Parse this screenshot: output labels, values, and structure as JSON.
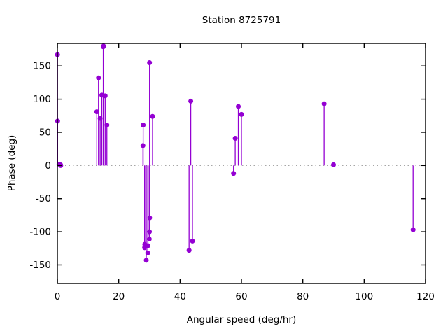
{
  "page": {
    "background": "#ffffff"
  },
  "chart_data": {
    "type": "scatter",
    "style": "impulses+points",
    "title": "Station 8725791",
    "xlabel": "Angular speed (deg/hr)",
    "ylabel": "Phase (deg)",
    "xlim": [
      0,
      120
    ],
    "ylim": [
      -178,
      184
    ],
    "xticks": [
      0,
      20,
      40,
      60,
      80,
      100,
      120
    ],
    "yticks": [
      -150,
      -100,
      -50,
      0,
      50,
      100,
      150
    ],
    "grid": false,
    "legend_position": "none",
    "zero_line": {
      "y": 0,
      "style": "dotted",
      "color": "#999999"
    },
    "axis_color": "#000000",
    "series": [
      {
        "name": "phase",
        "color": "#9400d3",
        "marker": "filled-circle",
        "marker_radius": 3.5,
        "points": [
          [
            0.04,
            167
          ],
          [
            0.08,
            67
          ],
          [
            0.54,
            2
          ],
          [
            1.02,
            1
          ],
          [
            1.1,
            0
          ],
          [
            12.85,
            81
          ],
          [
            13.4,
            132
          ],
          [
            13.94,
            71
          ],
          [
            14.49,
            106
          ],
          [
            14.96,
            179
          ],
          [
            15.04,
            180
          ],
          [
            15.58,
            105
          ],
          [
            16.14,
            61
          ],
          [
            27.9,
            30
          ],
          [
            27.97,
            61
          ],
          [
            28.44,
            -124
          ],
          [
            28.51,
            -119
          ],
          [
            28.98,
            -143
          ],
          [
            29.46,
            -132
          ],
          [
            29.53,
            -121
          ],
          [
            29.96,
            -111
          ],
          [
            30.0,
            -100
          ],
          [
            30.04,
            155
          ],
          [
            30.08,
            -79
          ],
          [
            31.02,
            74
          ],
          [
            42.93,
            -128
          ],
          [
            43.48,
            97
          ],
          [
            44.03,
            -114
          ],
          [
            57.42,
            -12
          ],
          [
            57.97,
            41
          ],
          [
            58.98,
            89
          ],
          [
            60.0,
            77
          ],
          [
            86.95,
            93
          ],
          [
            90.0,
            1
          ],
          [
            115.94,
            -97
          ]
        ]
      }
    ]
  },
  "layout_note": "gnuplot-style impulse plot"
}
